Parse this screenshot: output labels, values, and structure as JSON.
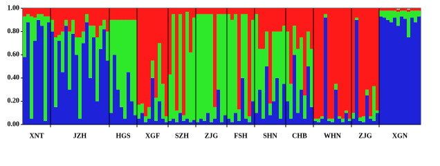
{
  "chart_data": {
    "type": "structure",
    "ylim": [
      0,
      1
    ],
    "yticks": [
      {
        "value": 0,
        "label": "0.00"
      },
      {
        "value": 0.2,
        "label": "0.20"
      },
      {
        "value": 0.4,
        "label": "0.40"
      },
      {
        "value": 0.6,
        "label": "0.60"
      },
      {
        "value": 0.8,
        "label": "0.80"
      },
      {
        "value": 1,
        "label": "1.00"
      }
    ],
    "groups": [
      {
        "name": "XNT",
        "size": 8
      },
      {
        "name": "JZH",
        "size": 17
      },
      {
        "name": "HGS",
        "size": 8
      },
      {
        "name": "XGF",
        "size": 9
      },
      {
        "name": "SZH",
        "size": 8
      },
      {
        "name": "ZJG",
        "size": 9
      },
      {
        "name": "FSH",
        "size": 8
      },
      {
        "name": "SHN",
        "size": 9
      },
      {
        "name": "CHB",
        "size": 8
      },
      {
        "name": "WHN",
        "size": 11
      },
      {
        "name": "ZJG",
        "size": 8
      },
      {
        "name": "XGN",
        "size": 12
      }
    ],
    "series": [
      {
        "color": "#1e22d8",
        "values": [
          0.58,
          0.88,
          0.05,
          0.72,
          0.9,
          0.85,
          0.03,
          0.88,
          0.8,
          0.15,
          0.72,
          0.45,
          0.85,
          0.3,
          0.78,
          0.6,
          0.05,
          0.7,
          0.88,
          0.4,
          0.75,
          0.2,
          0.65,
          0.82,
          0.55,
          0.1,
          0.6,
          0.3,
          0.15,
          0.05,
          0.45,
          0.2,
          0.08,
          0.05,
          0.1,
          0.02,
          0.05,
          0.4,
          0.03,
          0.2,
          0.05,
          0.02,
          0.03,
          0.05,
          0.02,
          0.1,
          0.03,
          0.05,
          0.02,
          0.04,
          0.02,
          0.05,
          0.03,
          0.1,
          0.02,
          0.05,
          0.3,
          0.02,
          0.08,
          0.05,
          0.02,
          0.1,
          0.03,
          0.4,
          0.05,
          0.02,
          0.2,
          0.1,
          0.3,
          0.05,
          0.5,
          0.08,
          0.2,
          0.4,
          0.05,
          0.35,
          0.2,
          0.05,
          0.6,
          0.1,
          0.3,
          0.05,
          0.5,
          0.15,
          0.03,
          0.02,
          0.05,
          0.92,
          0.03,
          0.02,
          0.3,
          0.05,
          0.02,
          0.1,
          0.03,
          0.05,
          0.9,
          0.03,
          0.02,
          0.25,
          0.05,
          0.03,
          0.1,
          0.93,
          0.92,
          0.9,
          0.88,
          0.92,
          0.85,
          0.93,
          0.91,
          0.75,
          0.92,
          0.88,
          0.93
        ]
      },
      {
        "color": "#2ee82a",
        "values": [
          0.35,
          0.07,
          0.88,
          0.2,
          0.05,
          0.1,
          0.9,
          0.05,
          0.1,
          0.6,
          0.05,
          0.35,
          0.05,
          0.5,
          0.12,
          0.15,
          0.7,
          0.1,
          0.07,
          0.45,
          0.1,
          0.55,
          0.2,
          0.08,
          0.25,
          0.8,
          0.3,
          0.6,
          0.75,
          0.85,
          0.45,
          0.7,
          0.82,
          0.12,
          0.08,
          0.05,
          0.1,
          0.15,
          0.2,
          0.5,
          0.3,
          0.05,
          0.4,
          0.9,
          0.1,
          0.85,
          0.05,
          0.92,
          0.6,
          0.88,
          0.93,
          0.9,
          0.92,
          0.85,
          0.93,
          0.1,
          0.65,
          0.93,
          0.87,
          0.9,
          0.88,
          0.85,
          0.1,
          0.55,
          0.9,
          0.05,
          0.7,
          0.85,
          0.35,
          0.6,
          0.3,
          0.1,
          0.6,
          0.4,
          0.75,
          0.5,
          0.6,
          0.3,
          0.25,
          0.55,
          0.45,
          0.2,
          0.3,
          0.5,
          0.02,
          0.03,
          0.02,
          0.03,
          0.02,
          0.03,
          0.05,
          0.02,
          0.03,
          0.02,
          0.02,
          0.05,
          0.02,
          0.03,
          0.05,
          0.05,
          0.02,
          0.3,
          0.02,
          0.05,
          0.06,
          0.08,
          0.1,
          0.06,
          0.12,
          0.05,
          0.07,
          0.22,
          0.06,
          0.1,
          0.05
        ]
      },
      {
        "color": "#ff1a1a",
        "values": [
          0.07,
          0.05,
          0.07,
          0.08,
          0.05,
          0.05,
          0.07,
          0.07,
          0.1,
          0.25,
          0.23,
          0.2,
          0.1,
          0.2,
          0.1,
          0.25,
          0.25,
          0.2,
          0.05,
          0.15,
          0.15,
          0.25,
          0.15,
          0.1,
          0.2,
          0.1,
          0.1,
          0.1,
          0.1,
          0.1,
          0.1,
          0.1,
          0.1,
          0.83,
          0.82,
          0.93,
          0.85,
          0.45,
          0.77,
          0.3,
          0.65,
          0.93,
          0.57,
          0.05,
          0.88,
          0.05,
          0.92,
          0.03,
          0.38,
          0.08,
          0.05,
          0.05,
          0.05,
          0.05,
          0.05,
          0.85,
          0.05,
          0.05,
          0.05,
          0.05,
          0.1,
          0.05,
          0.87,
          0.05,
          0.05,
          0.93,
          0.1,
          0.05,
          0.35,
          0.35,
          0.2,
          0.82,
          0.2,
          0.2,
          0.2,
          0.15,
          0.2,
          0.65,
          0.15,
          0.35,
          0.25,
          0.75,
          0.2,
          0.35,
          0.95,
          0.95,
          0.93,
          0.05,
          0.95,
          0.95,
          0.65,
          0.93,
          0.95,
          0.88,
          0.95,
          0.9,
          0.08,
          0.94,
          0.93,
          0.7,
          0.93,
          0.67,
          0.88,
          0.02,
          0.02,
          0.02,
          0.02,
          0.02,
          0.02,
          0.02,
          0.02,
          0.02,
          0.02,
          0.02,
          0.02
        ]
      }
    ]
  }
}
